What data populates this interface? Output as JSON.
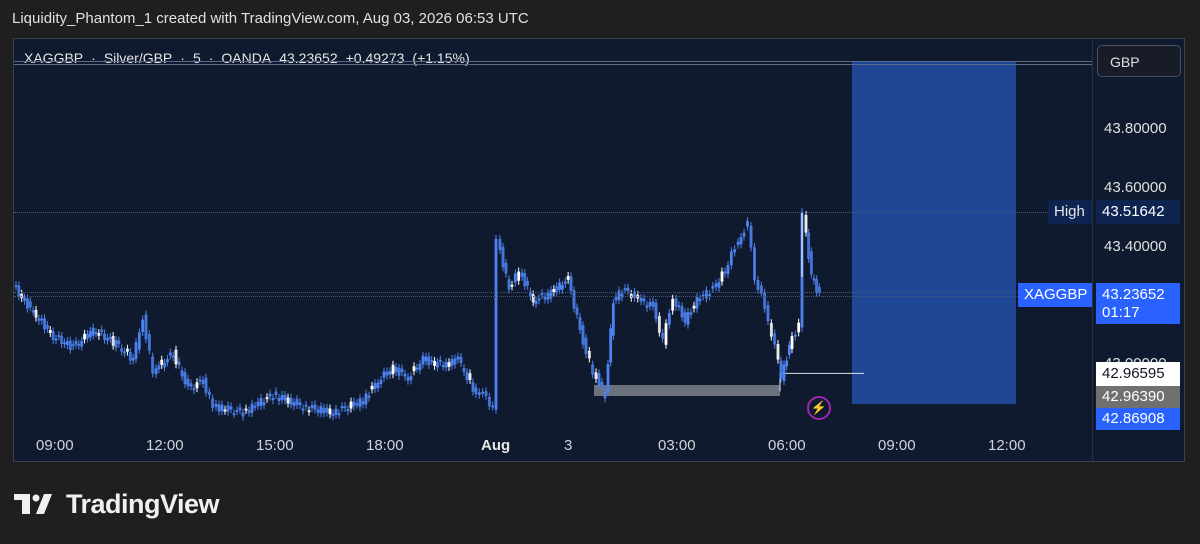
{
  "header": {
    "caption": "Liquidity_Phantom_1 created with TradingView.com, Aug 03, 2026 06:53 UTC"
  },
  "symbol": {
    "ticker": "XAGGBP",
    "description": "Silver/GBP",
    "interval": "5",
    "exchange": "OANDA",
    "last": "43.23652",
    "change": "+0.49273",
    "change_pct": "(+1.15%)",
    "separator": "·"
  },
  "currency_button": "GBP",
  "price_axis": {
    "ticks": [
      "43.80000",
      "43.60000",
      "43.40000"
    ],
    "hidden_tick": "43.00000"
  },
  "tags": {
    "high_label": "High",
    "high_value": "43.51642",
    "symbol_label": "XAGGBP",
    "current_value": "43.23652",
    "countdown": "01:17",
    "line1_value": "42.96595",
    "line2_value": "42.96390",
    "line3_value": "42.86908"
  },
  "time_axis": [
    "09:00",
    "12:00",
    "15:00",
    "18:00",
    "Aug",
    "3",
    "03:00",
    "06:00",
    "09:00",
    "12:00"
  ],
  "colors": {
    "candle": "#4d82f0",
    "candle_alt": "#ffffff",
    "position_box": "#2350a8",
    "background": "#101a2e",
    "tag_blue": "#2962ff"
  },
  "chart_data": {
    "type": "candlestick",
    "symbol": "XAGGBP",
    "interval": "5",
    "ylim": [
      42.86,
      43.98
    ],
    "high": 43.51642,
    "last": 43.23652,
    "range_line": 42.96595,
    "long_position_zone": [
      42.86908,
      43.98
    ]
  },
  "logo": {
    "text": "TradingView",
    "icon": "tradingview-logo-icon"
  },
  "bolt_icon": "lightning-icon"
}
